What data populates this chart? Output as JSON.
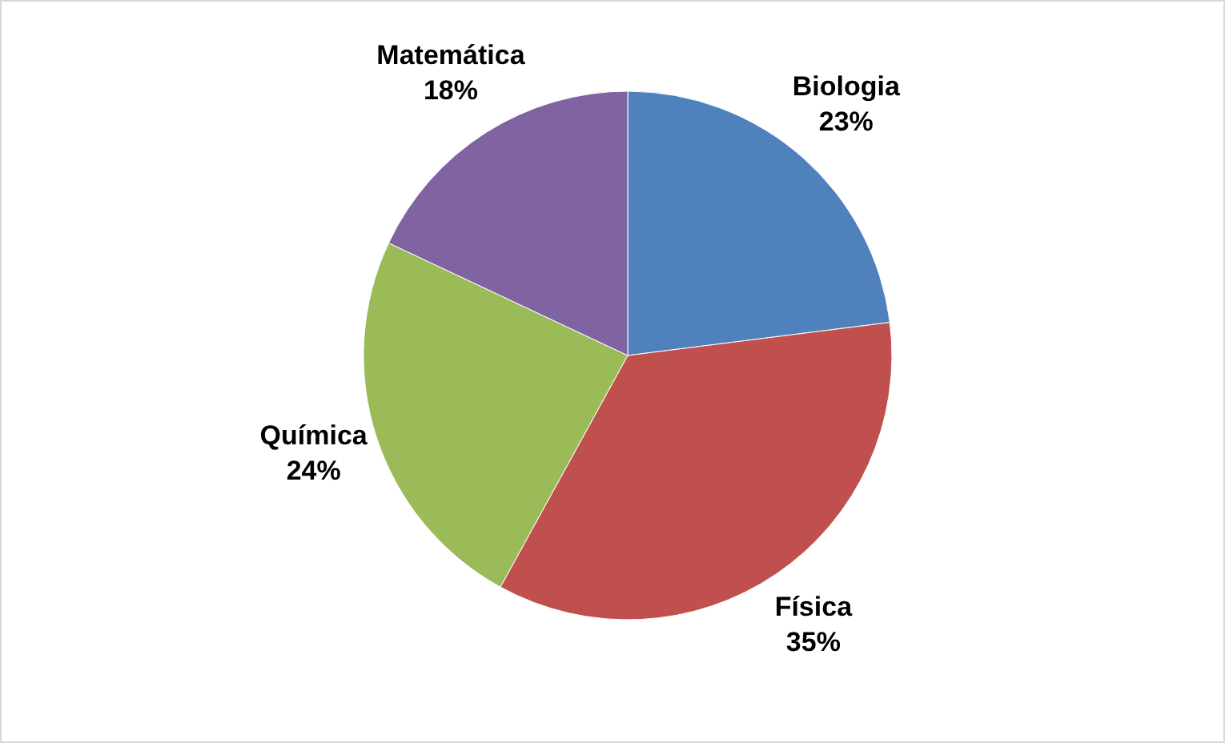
{
  "chart_data": {
    "type": "pie",
    "categories": [
      "Biologia",
      "Física",
      "Química",
      "Matemática"
    ],
    "values": [
      23,
      35,
      24,
      18
    ],
    "value_labels": [
      "23%",
      "35%",
      "24%",
      "18%"
    ],
    "colors": [
      "#4f81bd",
      "#c0504d",
      "#9bbb59",
      "#8064a2"
    ]
  }
}
